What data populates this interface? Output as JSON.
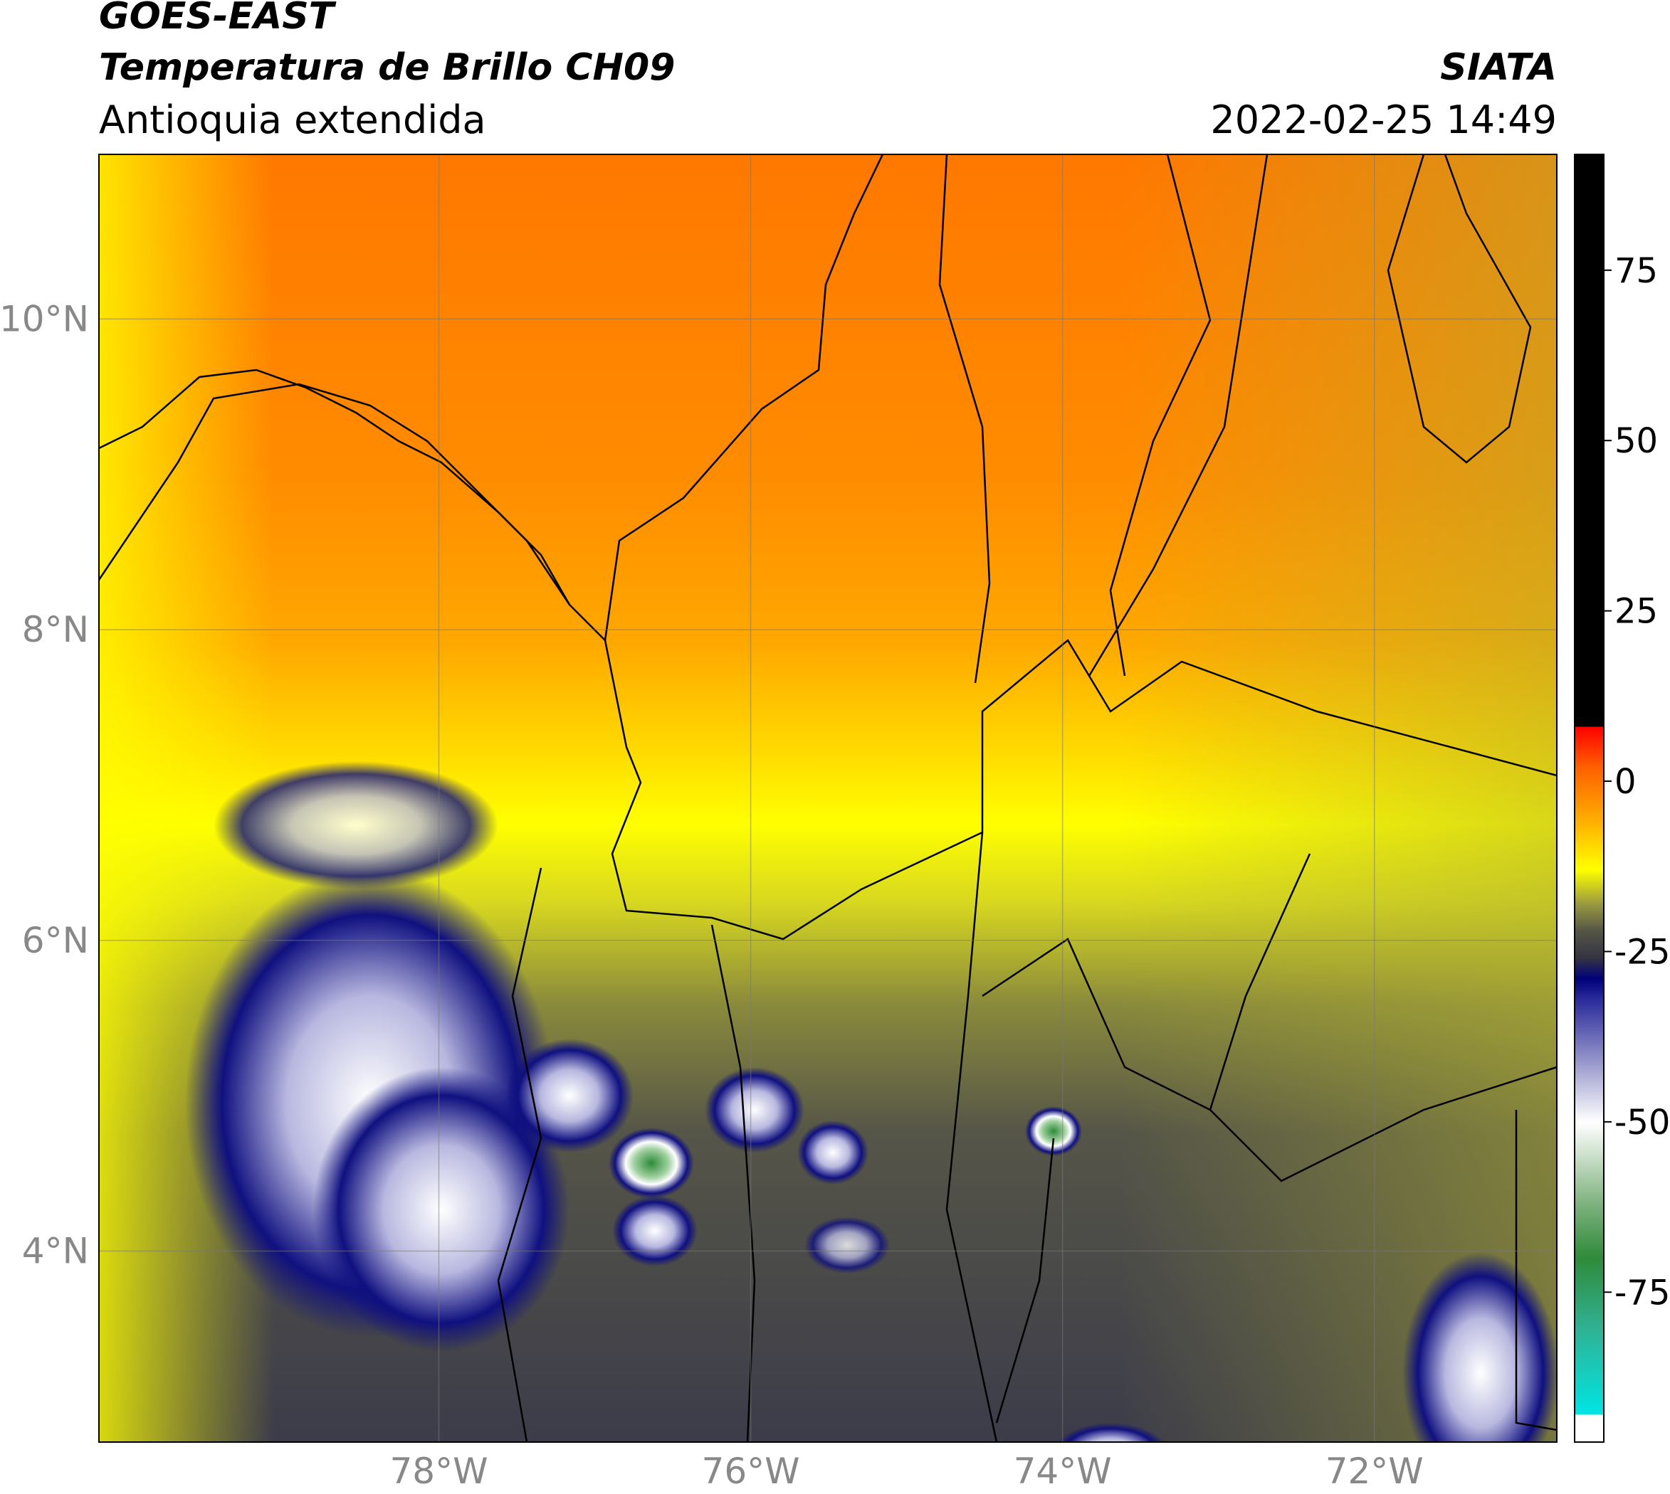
{
  "header": {
    "line1": "GOES-EAST",
    "line2": "Temperatura de Brillo CH09",
    "line3": "Antioquia extendida",
    "source": "SIATA",
    "datetime": "2022-02-25 14:49"
  },
  "map": {
    "xlim": [
      -80.18,
      -70.83
    ],
    "ylim": [
      2.77,
      11.06
    ],
    "grid": true,
    "xticks": [
      {
        "value": -78,
        "label": "78°W"
      },
      {
        "value": -76,
        "label": "76°W"
      },
      {
        "value": -74,
        "label": "74°W"
      },
      {
        "value": -72,
        "label": "72°W"
      }
    ],
    "yticks": [
      {
        "value": 10,
        "label": "10°N"
      },
      {
        "value": 8,
        "label": "8°N"
      },
      {
        "value": 6,
        "label": "6°N"
      },
      {
        "value": 4,
        "label": "4°N"
      }
    ]
  },
  "colorbar": {
    "lim": [
      -97,
      92
    ],
    "ticks": [
      75,
      50,
      25,
      0,
      -25,
      -50,
      -75
    ],
    "stops": [
      {
        "value": -97,
        "color": "#ffffff"
      },
      {
        "value": -93,
        "color": "#ffffff"
      },
      {
        "value": -93,
        "color": "#00e5e5"
      },
      {
        "value": -80,
        "color": "#30b090"
      },
      {
        "value": -70,
        "color": "#2e8b3a"
      },
      {
        "value": -62,
        "color": "#7fb27f"
      },
      {
        "value": -53,
        "color": "#e0ece0"
      },
      {
        "value": -50,
        "color": "#ffffff"
      },
      {
        "value": -42,
        "color": "#a0a0d0"
      },
      {
        "value": -32,
        "color": "#2a2a9a"
      },
      {
        "value": -29,
        "color": "#00007a"
      },
      {
        "value": -26,
        "color": "#333344"
      },
      {
        "value": -22,
        "color": "#555545"
      },
      {
        "value": -18,
        "color": "#9a9a40"
      },
      {
        "value": -13,
        "color": "#ffff00"
      },
      {
        "value": -6,
        "color": "#ffb000"
      },
      {
        "value": 2,
        "color": "#ff6000"
      },
      {
        "value": 8,
        "color": "#ff0000"
      },
      {
        "value": 8,
        "color": "#000000"
      },
      {
        "value": 92,
        "color": "#000000"
      }
    ]
  }
}
